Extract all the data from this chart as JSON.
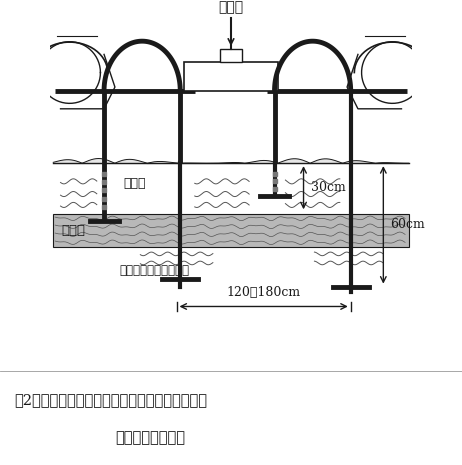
{
  "title_line1": "図2　スラリ作溝施用と耕盤破砕を組み合わせた",
  "title_line2": "土層改良の概念図",
  "label_slurry_top": "スラリ",
  "label_slurry_soil": "スラリ",
  "label_koban": "耕　盤",
  "label_subsoiler": "サブソイラとして使用",
  "label_30cm": "30cm",
  "label_60cm": "60cm",
  "label_width": "120～180cm",
  "bg_color": "#ffffff",
  "drawing_color": "#1a1a1a",
  "hardpan_color": "#b8b8b8",
  "hardpan_edge": "#555555"
}
